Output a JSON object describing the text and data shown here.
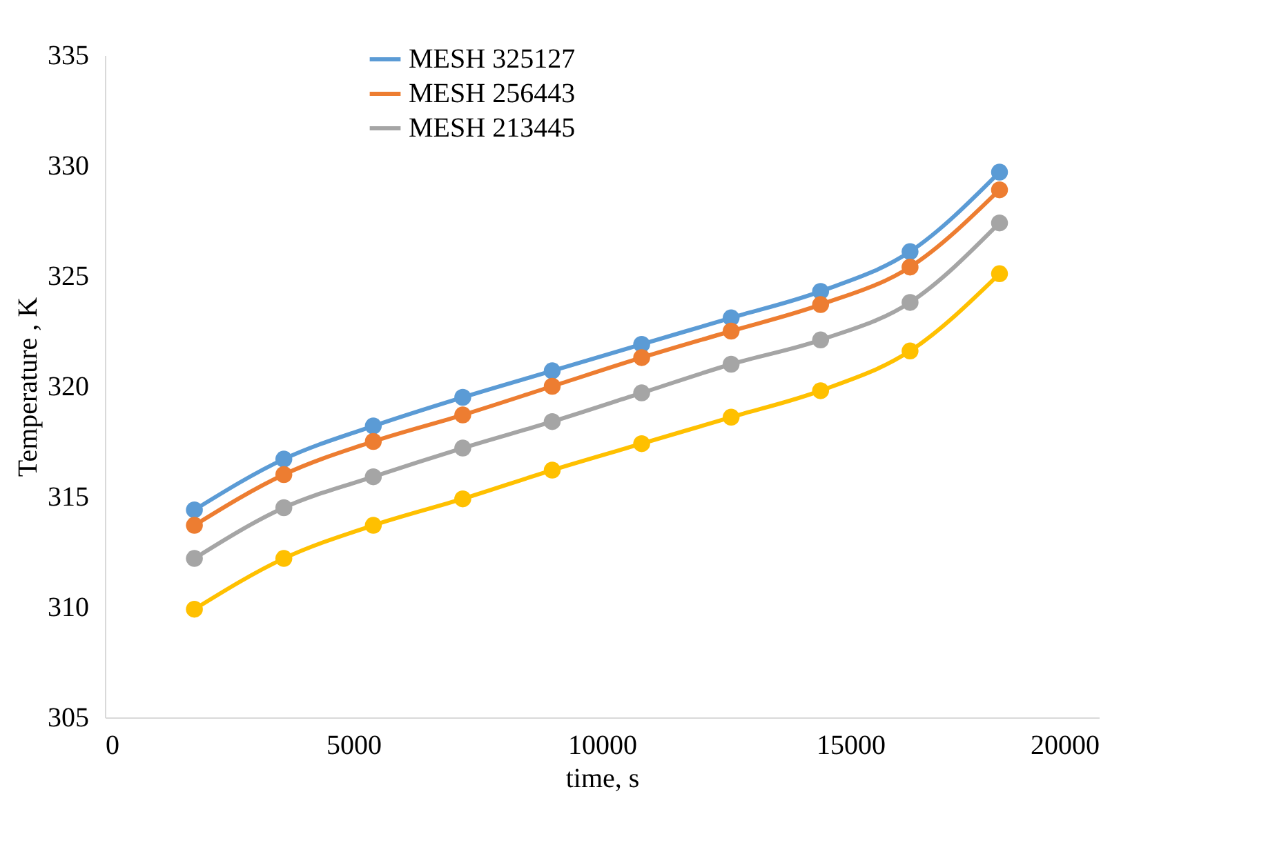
{
  "chart_data": {
    "type": "line",
    "xlabel": "time, s",
    "ylabel": "Temperature , K",
    "x": [
      1800,
      3600,
      5400,
      7200,
      9000,
      10800,
      12600,
      14400,
      16200,
      18000
    ],
    "xlim": [
      0,
      20000
    ],
    "xticks": [
      0,
      5000,
      10000,
      15000,
      20000
    ],
    "ylim": [
      305,
      335
    ],
    "yticks": [
      305,
      310,
      315,
      320,
      325,
      330,
      335
    ],
    "grid": false,
    "legend": "top",
    "marker": "circle",
    "line_style": "solid",
    "series": [
      {
        "name": "MESH 325127",
        "color": "#5b9bd5",
        "values": [
          314.4,
          316.7,
          318.2,
          319.5,
          320.7,
          321.9,
          323.1,
          324.3,
          326.1,
          329.7
        ]
      },
      {
        "name": "MESH 256443",
        "color": "#ed7d31",
        "values": [
          313.7,
          316.0,
          317.5,
          318.7,
          320.0,
          321.3,
          322.5,
          323.7,
          325.4,
          328.9
        ]
      },
      {
        "name": "MESH 213445",
        "color": "#a5a5a5",
        "values": [
          312.2,
          314.5,
          315.9,
          317.2,
          318.4,
          319.7,
          321.0,
          322.1,
          323.8,
          327.4
        ]
      },
      {
        "color": "#ffc000",
        "values": [
          309.9,
          312.2,
          313.7,
          314.9,
          316.2,
          317.4,
          318.6,
          319.8,
          321.6,
          325.1
        ]
      }
    ]
  }
}
